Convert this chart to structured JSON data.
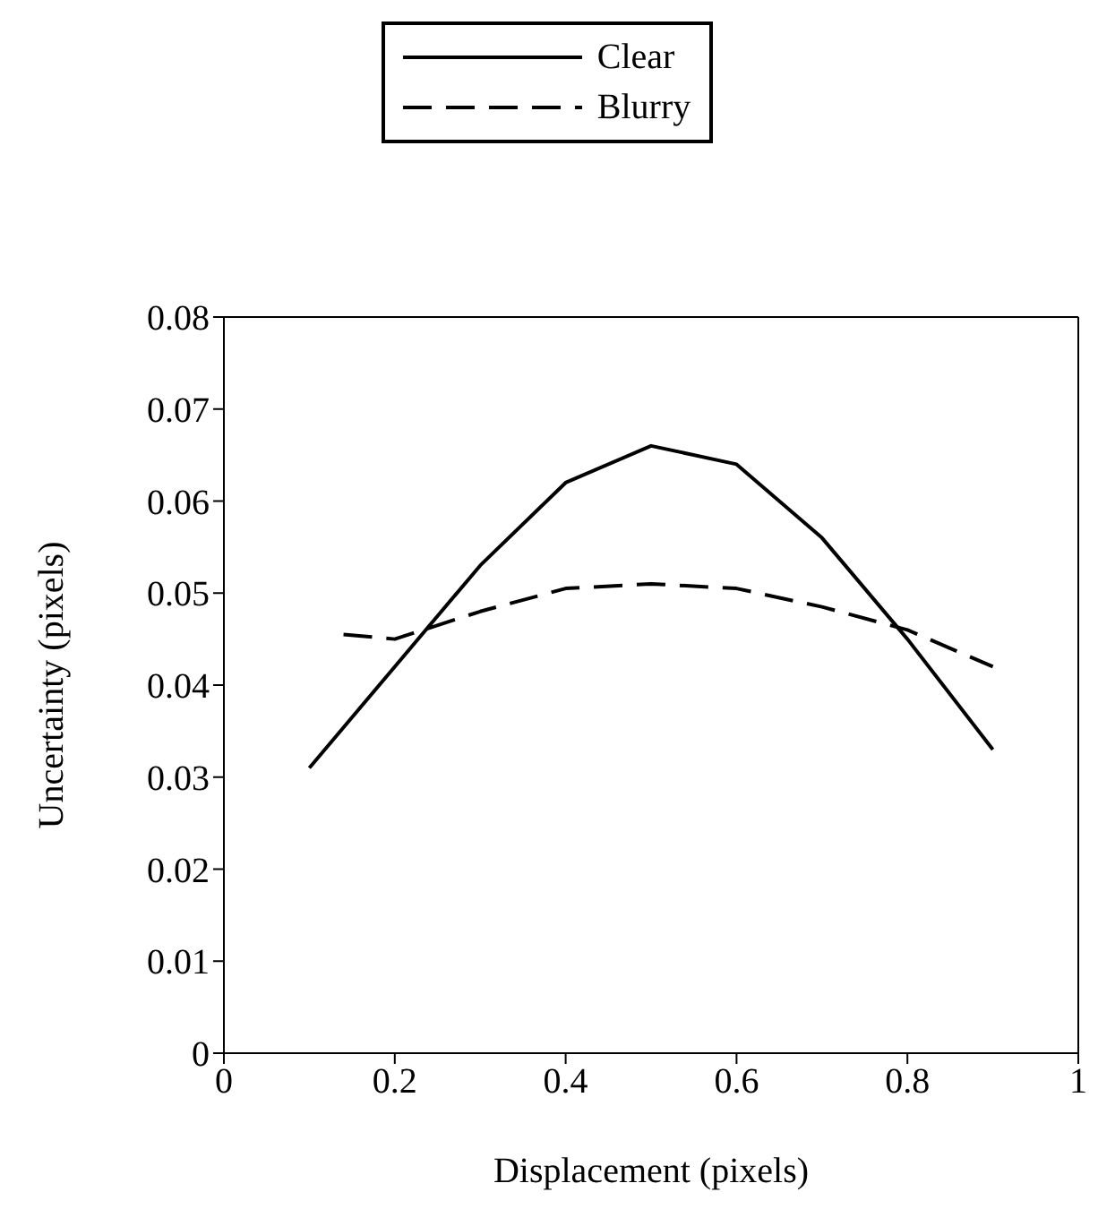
{
  "chart_data": {
    "type": "line",
    "xlabel": "Displacement (pixels)",
    "ylabel": "Uncertainty (pixels)",
    "xlim": [
      0,
      1
    ],
    "xticks": [
      0,
      0.2,
      0.4,
      0.6,
      0.8,
      1
    ],
    "ylim": [
      0,
      0.08
    ],
    "yticks": [
      0,
      0.01,
      0.02,
      0.03,
      0.04,
      0.05,
      0.06,
      0.07,
      0.08
    ],
    "legend": "top",
    "marker": "none",
    "series": [
      {
        "name": "Clear",
        "color": "#000000",
        "line_style": "solid",
        "x": [
          0.1,
          0.2,
          0.3,
          0.4,
          0.5,
          0.6,
          0.7,
          0.8,
          0.9
        ],
        "values": [
          0.031,
          0.042,
          0.053,
          0.062,
          0.066,
          0.064,
          0.056,
          0.045,
          0.033
        ]
      },
      {
        "name": "Blurry",
        "color": "#000000",
        "line_style": "dashed",
        "x": [
          0.14,
          0.2,
          0.3,
          0.4,
          0.5,
          0.6,
          0.7,
          0.8,
          0.9
        ],
        "values": [
          0.0455,
          0.045,
          0.048,
          0.0505,
          0.051,
          0.0505,
          0.0485,
          0.046,
          0.042
        ]
      }
    ]
  }
}
